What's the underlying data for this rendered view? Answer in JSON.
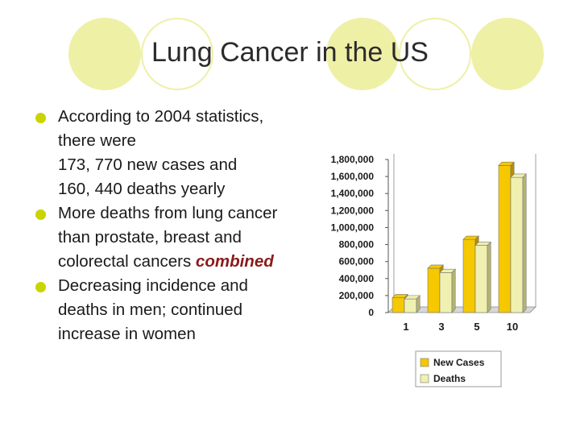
{
  "slide": {
    "title": "Lung Cancer in the US",
    "bullets": [
      {
        "lines": [
          "According to 2004 statistics,",
          "there were",
          "173, 770 new cases and",
          "160, 440 deaths yearly"
        ]
      },
      {
        "lines": [
          "More deaths from lung cancer",
          "than prostate, breast and"
        ],
        "last_line": "colorectal cancers ",
        "emphasis": "combined"
      },
      {
        "lines": [
          "Decreasing incidence and",
          "deaths in men; continued",
          "increase in women"
        ]
      }
    ]
  },
  "colors": {
    "new_cases": "#f5c800",
    "deaths": "#f0f0b0",
    "accent": "#c9d400",
    "decor": "#eef0a6",
    "emphasis": "#8b1a1a"
  },
  "chart_data": {
    "type": "bar",
    "categories": [
      "1",
      "3",
      "5",
      "10"
    ],
    "series": [
      {
        "name": "New Cases",
        "values": [
          173770,
          520000,
          860000,
          1730000
        ]
      },
      {
        "name": "Deaths",
        "values": [
          160440,
          470000,
          790000,
          1590000
        ]
      }
    ],
    "ylim": [
      0,
      1800000
    ],
    "y_ticks": [
      "0",
      "200,000",
      "400,000",
      "600,000",
      "800,000",
      "1,000,000",
      "1,200,000",
      "1,400,000",
      "1,600,000",
      "1,800,000"
    ],
    "legend_position": "bottom-right",
    "grid": false,
    "title": "",
    "xlabel": "",
    "ylabel": ""
  }
}
